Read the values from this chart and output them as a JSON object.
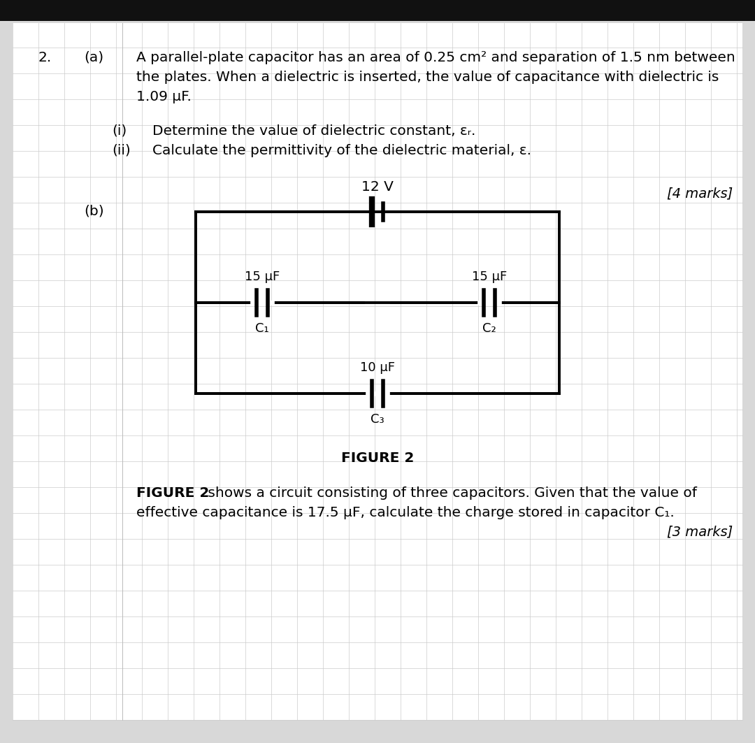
{
  "bg_color": "#d8d8d8",
  "header_color": "#111111",
  "page_bg": "#ffffff",
  "grid_color": "#cccccc",
  "text_color": "#000000",
  "question_number": "2.",
  "part_a_label": "(a)",
  "part_a_text_line1": "A parallel-plate capacitor has an area of 0.25 cm² and separation of 1.5 nm between",
  "part_a_text_line2": "the plates. When a dielectric is inserted, the value of capacitance with dielectric is",
  "part_a_text_line3": "1.09 μF.",
  "part_i_label": "(i)",
  "part_i_text": "Determine the value of dielectric constant, εᵣ.",
  "part_ii_label": "(ii)",
  "part_ii_text": "Calculate the permittivity of the dielectric material, ε.",
  "marks_a": "[4 marks]",
  "part_b_label": "(b)",
  "voltage_label": "12 V",
  "c1_label": "15 μF",
  "c1_name": "C₁",
  "c2_label": "15 μF",
  "c2_name": "C₂",
  "c3_label": "10 μF",
  "c3_name": "C₃",
  "figure_label": "FIGURE 2",
  "caption_bold": "FIGURE 2",
  "caption_text": " shows a circuit consisting of three capacitors. Given that the value of",
  "caption_line2": "effective capacitance is 17.5 μF, calculate the charge stored in capacitor C₁.",
  "marks_b": "[3 marks]",
  "font_size_main": 14.5,
  "font_size_small": 13,
  "font_size_marks": 14,
  "circuit_lw": 2.8,
  "cap_plate_lw": 4.0
}
